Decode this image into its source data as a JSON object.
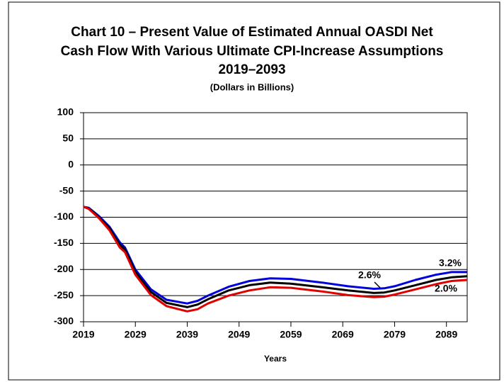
{
  "chart_data": {
    "type": "line",
    "title": [
      "Chart 10 – Present Value of Estimated Annual OASDI Net",
      "Cash Flow With Various Ultimate CPI-Increase Assumptions",
      "2019–2093"
    ],
    "subtitle": "(Dollars in Billions)",
    "x_label": "Years",
    "x": [
      2019,
      2020,
      2021,
      2022,
      2024,
      2026,
      2027,
      2029,
      2032,
      2035,
      2039,
      2041,
      2043,
      2047,
      2051,
      2055,
      2059,
      2065,
      2070,
      2075,
      2077,
      2079,
      2083,
      2087,
      2090,
      2093
    ],
    "series": [
      {
        "name": "3.2%",
        "color": "#0000dd",
        "values": [
          -80,
          -82,
          -90,
          -98,
          -118,
          -148,
          -158,
          -200,
          -238,
          -258,
          -265,
          -260,
          -250,
          -233,
          -222,
          -217,
          -218,
          -225,
          -232,
          -237,
          -236,
          -232,
          -220,
          -210,
          -205,
          -205
        ]
      },
      {
        "name": "2.6%",
        "color": "#000000",
        "values": [
          -80,
          -83,
          -91,
          -100,
          -121,
          -153,
          -162,
          -205,
          -243,
          -264,
          -272,
          -267,
          -257,
          -240,
          -230,
          -225,
          -227,
          -234,
          -240,
          -245,
          -244,
          -240,
          -230,
          -220,
          -215,
          -213
        ]
      },
      {
        "name": "2.0%",
        "color": "#e00000",
        "values": [
          -80,
          -84,
          -93,
          -102,
          -125,
          -158,
          -167,
          -210,
          -249,
          -270,
          -280,
          -276,
          -265,
          -250,
          -240,
          -234,
          -235,
          -242,
          -249,
          -253,
          -252,
          -248,
          -238,
          -228,
          -222,
          -220
        ]
      }
    ],
    "xlim": [
      2019,
      2093
    ],
    "xticks": [
      2019,
      2029,
      2039,
      2049,
      2059,
      2069,
      2079,
      2089
    ],
    "ylim": [
      -300,
      100
    ],
    "yticks": [
      -300,
      -250,
      -200,
      -150,
      -100,
      -50,
      0,
      50,
      100
    ],
    "grid": true
  }
}
